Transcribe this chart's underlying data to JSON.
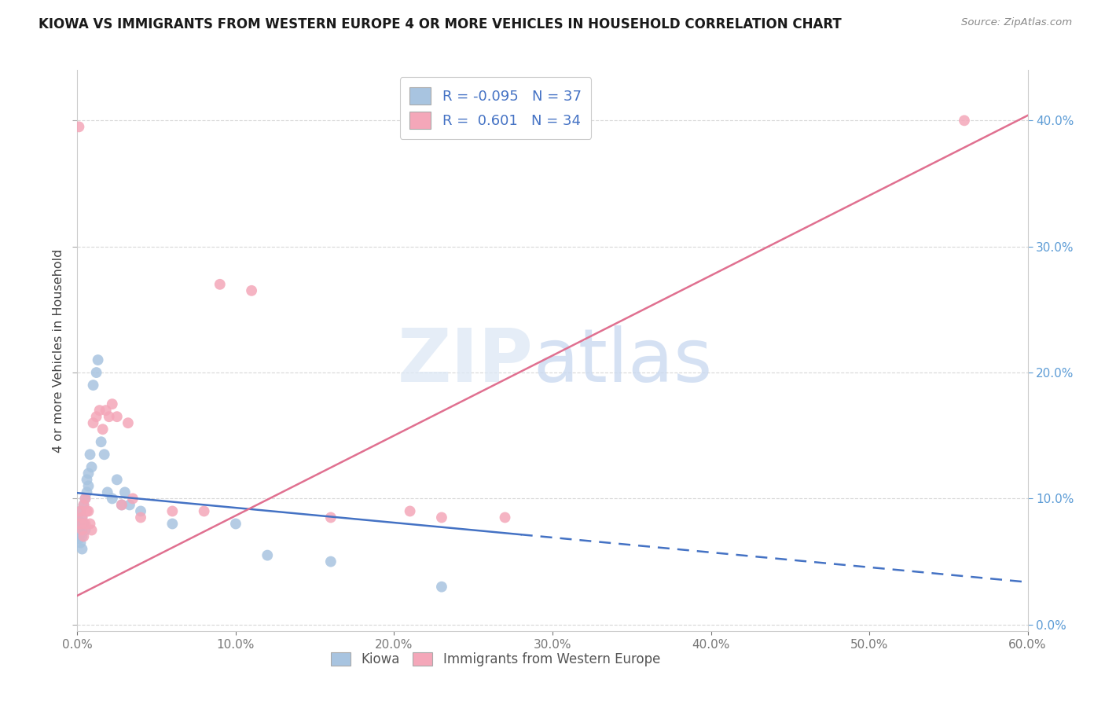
{
  "title": "KIOWA VS IMMIGRANTS FROM WESTERN EUROPE 4 OR MORE VEHICLES IN HOUSEHOLD CORRELATION CHART",
  "source": "Source: ZipAtlas.com",
  "ylabel": "4 or more Vehicles in Household",
  "xlim": [
    0.0,
    0.6
  ],
  "ylim": [
    -0.005,
    0.44
  ],
  "yticks": [
    0.0,
    0.1,
    0.2,
    0.3,
    0.4
  ],
  "xticks": [
    0.0,
    0.1,
    0.2,
    0.3,
    0.4,
    0.5,
    0.6
  ],
  "kiowa_color": "#a8c4e0",
  "immigrants_color": "#f4a7b9",
  "kiowa_line_color": "#4472c4",
  "immigrants_line_color": "#e07090",
  "kiowa_R": -0.095,
  "kiowa_N": 37,
  "immigrants_R": 0.601,
  "immigrants_N": 34,
  "background_color": "#ffffff",
  "grid_color": "#d8d8d8",
  "kiowa_x": [
    0.001,
    0.001,
    0.001,
    0.002,
    0.002,
    0.002,
    0.002,
    0.003,
    0.003,
    0.003,
    0.004,
    0.004,
    0.005,
    0.005,
    0.006,
    0.006,
    0.007,
    0.007,
    0.008,
    0.009,
    0.01,
    0.012,
    0.013,
    0.015,
    0.017,
    0.019,
    0.022,
    0.025,
    0.028,
    0.03,
    0.033,
    0.04,
    0.06,
    0.1,
    0.12,
    0.16,
    0.23
  ],
  "kiowa_y": [
    0.075,
    0.082,
    0.068,
    0.09,
    0.078,
    0.072,
    0.065,
    0.085,
    0.07,
    0.06,
    0.08,
    0.095,
    0.1,
    0.075,
    0.115,
    0.105,
    0.11,
    0.12,
    0.135,
    0.125,
    0.19,
    0.2,
    0.21,
    0.145,
    0.135,
    0.105,
    0.1,
    0.115,
    0.095,
    0.105,
    0.095,
    0.09,
    0.08,
    0.08,
    0.055,
    0.05,
    0.03
  ],
  "immigrants_x": [
    0.001,
    0.002,
    0.002,
    0.003,
    0.003,
    0.004,
    0.004,
    0.005,
    0.005,
    0.006,
    0.007,
    0.008,
    0.009,
    0.01,
    0.012,
    0.014,
    0.016,
    0.018,
    0.02,
    0.022,
    0.025,
    0.028,
    0.032,
    0.035,
    0.04,
    0.06,
    0.08,
    0.09,
    0.11,
    0.16,
    0.21,
    0.23,
    0.27,
    0.56
  ],
  "immigrants_y": [
    0.395,
    0.09,
    0.08,
    0.085,
    0.075,
    0.095,
    0.07,
    0.1,
    0.08,
    0.09,
    0.09,
    0.08,
    0.075,
    0.16,
    0.165,
    0.17,
    0.155,
    0.17,
    0.165,
    0.175,
    0.165,
    0.095,
    0.16,
    0.1,
    0.085,
    0.09,
    0.09,
    0.27,
    0.265,
    0.085,
    0.09,
    0.085,
    0.085,
    0.4
  ],
  "kiowa_line_intercept": 0.1045,
  "kiowa_line_slope": -0.118,
  "immigrants_line_intercept": 0.023,
  "immigrants_line_slope": 0.635
}
